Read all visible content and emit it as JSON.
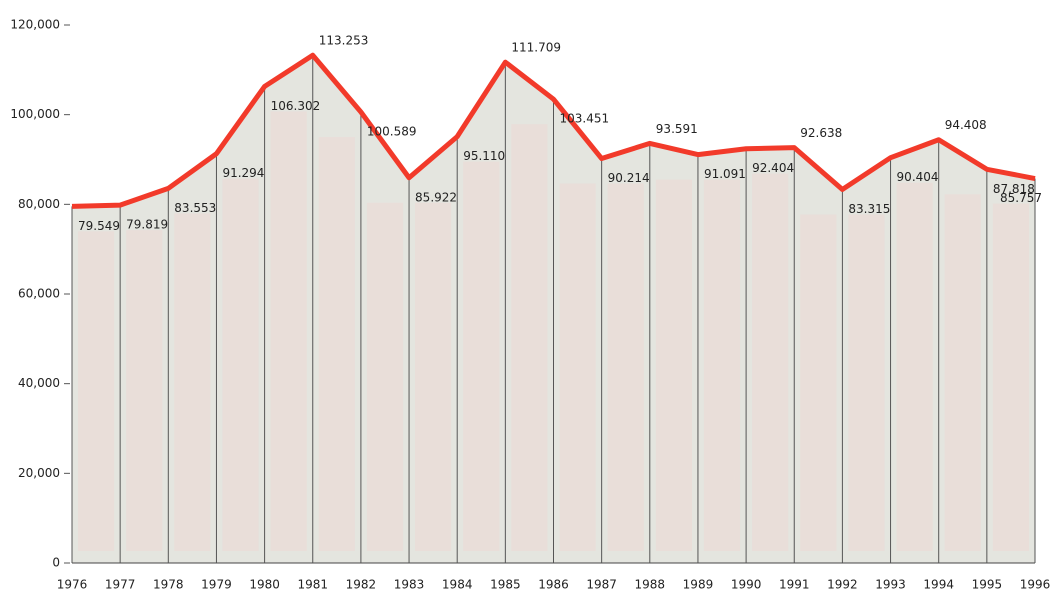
{
  "chart_data": {
    "type": "line",
    "categories": [
      "1976",
      "1977",
      "1978",
      "1979",
      "1980",
      "1981",
      "1982",
      "1983",
      "1984",
      "1985",
      "1986",
      "1987",
      "1988",
      "1989",
      "1990",
      "1991",
      "1992",
      "1993",
      "1994",
      "1995",
      "1996"
    ],
    "values": [
      79549,
      79819,
      83553,
      91294,
      106302,
      113253,
      100589,
      85922,
      95110,
      111709,
      103451,
      90214,
      93591,
      91091,
      92404,
      92638,
      83315,
      90404,
      94408,
      87818,
      85757
    ],
    "value_labels": [
      "79.549",
      "79.819",
      "83.553",
      "91.294",
      "106.302",
      "113.253",
      "100.589",
      "85.922",
      "95.110",
      "111.709",
      "103.451",
      "90.214",
      "93.591",
      "91.091",
      "92.404",
      "92.638",
      "83.315",
      "90.404",
      "94.408",
      "87.818",
      "85.757"
    ],
    "color": "#f23a2a",
    "ylim": [
      0,
      120000
    ],
    "yticks": [
      0,
      {
        "value": 20000,
        "label": "20,000"
      },
      {
        "value": 40000,
        "label": "40,000"
      },
      {
        "value": 60000,
        "label": "60,000"
      },
      {
        "value": 80000,
        "label": "80,000"
      },
      {
        "value": 100000,
        "label": "100,000"
      },
      {
        "value": 120000,
        "label": "120,000"
      }
    ]
  }
}
